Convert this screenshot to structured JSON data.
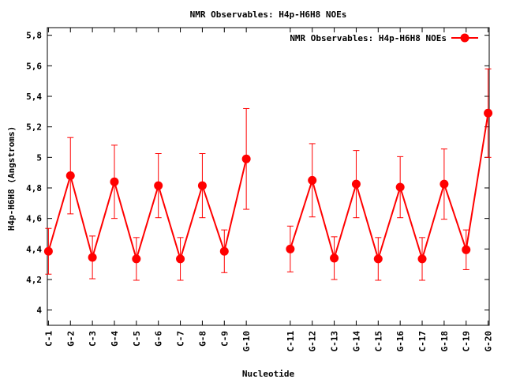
{
  "chart_data": {
    "type": "line",
    "title": "NMR Observables: H4p-H6H8 NOEs",
    "xlabel": "Nucleotide",
    "ylabel": "H4p-H6H8 (Angstroms)",
    "ylim": [
      3.9,
      5.85
    ],
    "yticks": [
      4,
      4.2,
      4.4,
      4.6,
      4.8,
      5,
      5.2,
      5.4,
      5.6,
      5.8
    ],
    "ytick_labels": [
      "4",
      "4,2",
      "4,4",
      "4,6",
      "4,8",
      "5",
      "5,2",
      "5,4",
      "5,6",
      "5,8"
    ],
    "xlim": [
      0.95,
      20.05
    ],
    "legend_position": "top-right",
    "grid": false,
    "color": "#ff0000",
    "series": [
      {
        "name": "NMR Observables: H4p-H6H8 NOEs",
        "segments": [
          {
            "labels": [
              "C-1",
              "G-2",
              "C-3",
              "G-4",
              "C-5",
              "G-6",
              "C-7",
              "G-8",
              "C-9",
              "G-10"
            ],
            "x": [
              1,
              2,
              3,
              4,
              5,
              6,
              7,
              8,
              9,
              10
            ],
            "y": [
              4.385,
              4.88,
              4.345,
              4.84,
              4.335,
              4.815,
              4.335,
              4.815,
              4.385,
              4.99
            ],
            "err": [
              0.15,
              0.25,
              0.14,
              0.24,
              0.14,
              0.21,
              0.14,
              0.21,
              0.14,
              0.33
            ]
          },
          {
            "labels": [
              "C-11",
              "G-12",
              "C-13",
              "G-14",
              "C-15",
              "G-16",
              "C-17",
              "G-18",
              "C-19",
              "G-20"
            ],
            "x": [
              12,
              13,
              14,
              15,
              16,
              17,
              18,
              19,
              20,
              21
            ],
            "y": [
              4.4,
              4.85,
              4.34,
              4.825,
              4.335,
              4.805,
              4.335,
              4.825,
              4.395,
              5.29
            ],
            "err": [
              0.15,
              0.24,
              0.14,
              0.22,
              0.14,
              0.2,
              0.14,
              0.23,
              0.13,
              0.29
            ]
          }
        ]
      }
    ]
  }
}
